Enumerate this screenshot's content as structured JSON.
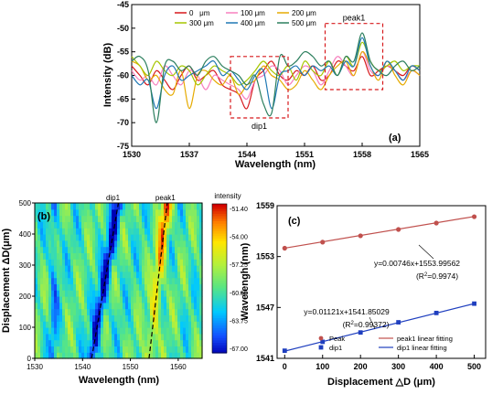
{
  "chart_data": [
    {
      "panel": "(a)",
      "type": "line",
      "xlabel": "Wavelength (nm)",
      "ylabel": "Intensity (dB)",
      "xlim": [
        1530,
        1565
      ],
      "ylim": [
        -75,
        -45
      ],
      "xticks": [
        1530,
        1537,
        1544,
        1551,
        1558,
        1565
      ],
      "yticks": [
        -75,
        -70,
        -65,
        -60,
        -55,
        -50,
        -45
      ],
      "legend_position": "top-center",
      "annotations": [
        "peak1",
        "dip1"
      ],
      "annotation_regions": [
        {
          "label": "peak1",
          "x_range": [
            1553.5,
            1560.5
          ],
          "y_range": [
            -63,
            -49
          ]
        },
        {
          "label": "dip1",
          "x_range": [
            1542.0,
            1549.0
          ],
          "y_range": [
            -69,
            -56
          ]
        }
      ],
      "x": [
        1530,
        1531,
        1532,
        1533,
        1534,
        1535,
        1536,
        1537,
        1538,
        1539,
        1540,
        1541,
        1542,
        1543,
        1544,
        1545,
        1546,
        1547,
        1548,
        1549,
        1550,
        1551,
        1552,
        1553,
        1554,
        1555,
        1556,
        1557,
        1558,
        1559,
        1560,
        1561,
        1562,
        1563,
        1564,
        1565
      ],
      "series": [
        {
          "name": "0   μm",
          "color": "#d7191c",
          "values": [
            -58,
            -60,
            -62,
            -59,
            -61,
            -63,
            -60,
            -58,
            -61,
            -60,
            -59,
            -62,
            -63,
            -64,
            -67,
            -61,
            -59,
            -57,
            -60,
            -61,
            -59,
            -60,
            -58,
            -61,
            -60,
            -57,
            -58,
            -59,
            -56,
            -60,
            -59,
            -58,
            -59,
            -60,
            -58,
            -59
          ]
        },
        {
          "name": "100 μm",
          "color": "#f781bf",
          "values": [
            -59,
            -61,
            -60,
            -62,
            -58,
            -60,
            -62,
            -59,
            -60,
            -63,
            -60,
            -61,
            -62,
            -63,
            -65,
            -61,
            -60,
            -58,
            -59,
            -62,
            -60,
            -58,
            -59,
            -62,
            -59,
            -56,
            -58,
            -60,
            -55,
            -59,
            -60,
            -58,
            -59,
            -61,
            -59,
            -60
          ]
        },
        {
          "name": "200 μm",
          "color": "#e6ab02",
          "values": [
            -57,
            -58,
            -61,
            -60,
            -63,
            -64,
            -59,
            -67,
            -60,
            -59,
            -61,
            -62,
            -60,
            -64,
            -62,
            -61,
            -58,
            -60,
            -61,
            -63,
            -62,
            -59,
            -61,
            -63,
            -60,
            -58,
            -57,
            -60,
            -55,
            -58,
            -61,
            -57,
            -60,
            -62,
            -59,
            -60
          ]
        },
        {
          "name": "300 μm",
          "color": "#a6c600",
          "values": [
            -56,
            -58,
            -60,
            -57,
            -59,
            -60,
            -58,
            -59,
            -62,
            -60,
            -58,
            -59,
            -60,
            -62,
            -61,
            -59,
            -57,
            -59,
            -60,
            -58,
            -61,
            -57,
            -59,
            -60,
            -57,
            -60,
            -56,
            -58,
            -53,
            -57,
            -59,
            -58,
            -57,
            -59,
            -58,
            -58
          ]
        },
        {
          "name": "400 μm",
          "color": "#1f78b4",
          "values": [
            -60,
            -62,
            -61,
            -67,
            -60,
            -58,
            -61,
            -60,
            -59,
            -58,
            -57,
            -60,
            -59,
            -61,
            -63,
            -60,
            -59,
            -67,
            -60,
            -59,
            -58,
            -60,
            -58,
            -59,
            -58,
            -60,
            -57,
            -58,
            -52,
            -58,
            -60,
            -57,
            -59,
            -61,
            -58,
            -59
          ]
        },
        {
          "name": "500 μm",
          "color": "#2c7f5e",
          "values": [
            -57,
            -56,
            -59,
            -70,
            -58,
            -57,
            -59,
            -58,
            -60,
            -57,
            -56,
            -58,
            -59,
            -60,
            -62,
            -60,
            -66,
            -68,
            -56,
            -58,
            -57,
            -55,
            -56,
            -58,
            -57,
            -60,
            -56,
            -57,
            -51,
            -57,
            -59,
            -60,
            -58,
            -57,
            -59,
            -58
          ]
        }
      ]
    },
    {
      "panel": "(b)",
      "type": "heatmap",
      "xlabel": "Wavelength (nm)",
      "ylabel": "Displacement  ΔD(μm)",
      "xlim": [
        1530,
        1565
      ],
      "ylim": [
        0,
        500
      ],
      "xticks": [
        1530,
        1540,
        1550,
        1560
      ],
      "yticks": [
        0,
        100,
        200,
        300,
        400,
        500
      ],
      "colorbar_title": "intensity",
      "colorbar_range": [
        -67.0,
        -51.4
      ],
      "colorbar_ticks": [
        "-51.40",
        "-54.00",
        "-57.25",
        "-60.50",
        "-63.75",
        "-67.00"
      ],
      "annotations": [
        "dip1",
        "peak1"
      ],
      "trace_lines": [
        {
          "label": "dip1",
          "from": [
            1541.9,
            0
          ],
          "to": [
            1547.5,
            500
          ]
        },
        {
          "label": "peak1",
          "from": [
            1553.9,
            0
          ],
          "to": [
            1557.7,
            500
          ]
        }
      ]
    },
    {
      "panel": "(c)",
      "type": "scatter",
      "xlabel": "Displacement △D (μm)",
      "ylabel": "Wavelengh (nm)",
      "xlim": [
        -20,
        530
      ],
      "ylim": [
        1541,
        1559
      ],
      "xticks": [
        0,
        100,
        200,
        300,
        400,
        500
      ],
      "yticks": [
        1541,
        1547,
        1553,
        1559
      ],
      "legend_position": "bottom-center",
      "series": [
        {
          "name": "Peak",
          "marker": "circle",
          "color": "#c0504d",
          "x": [
            0,
            100,
            200,
            300,
            400,
            500
          ],
          "y": [
            1553.99,
            1554.7,
            1555.45,
            1556.2,
            1556.95,
            1557.7
          ]
        },
        {
          "name": "dip1",
          "marker": "square",
          "color": "#1f3fbf",
          "x": [
            0,
            100,
            200,
            300,
            400,
            500
          ],
          "y": [
            1541.9,
            1542.95,
            1544.05,
            1545.25,
            1546.35,
            1547.45
          ]
        }
      ],
      "fits": [
        {
          "name": "peak1 linear fitting",
          "color": "#c0504d",
          "slope": 0.00746,
          "intercept": 1553.99562,
          "equation": "y=0.00746x+1553.99562",
          "r2_prefix": "(R",
          "r2_suffix": "=0.9974)"
        },
        {
          "name": "dip1 linear fitting",
          "color": "#1f3fbf",
          "slope": 0.01121,
          "intercept": 1541.85029,
          "equation": "y=0.01121x+1541.85029",
          "r2_prefix": "(R",
          "r2_suffix": "=0.99372)"
        }
      ]
    }
  ]
}
